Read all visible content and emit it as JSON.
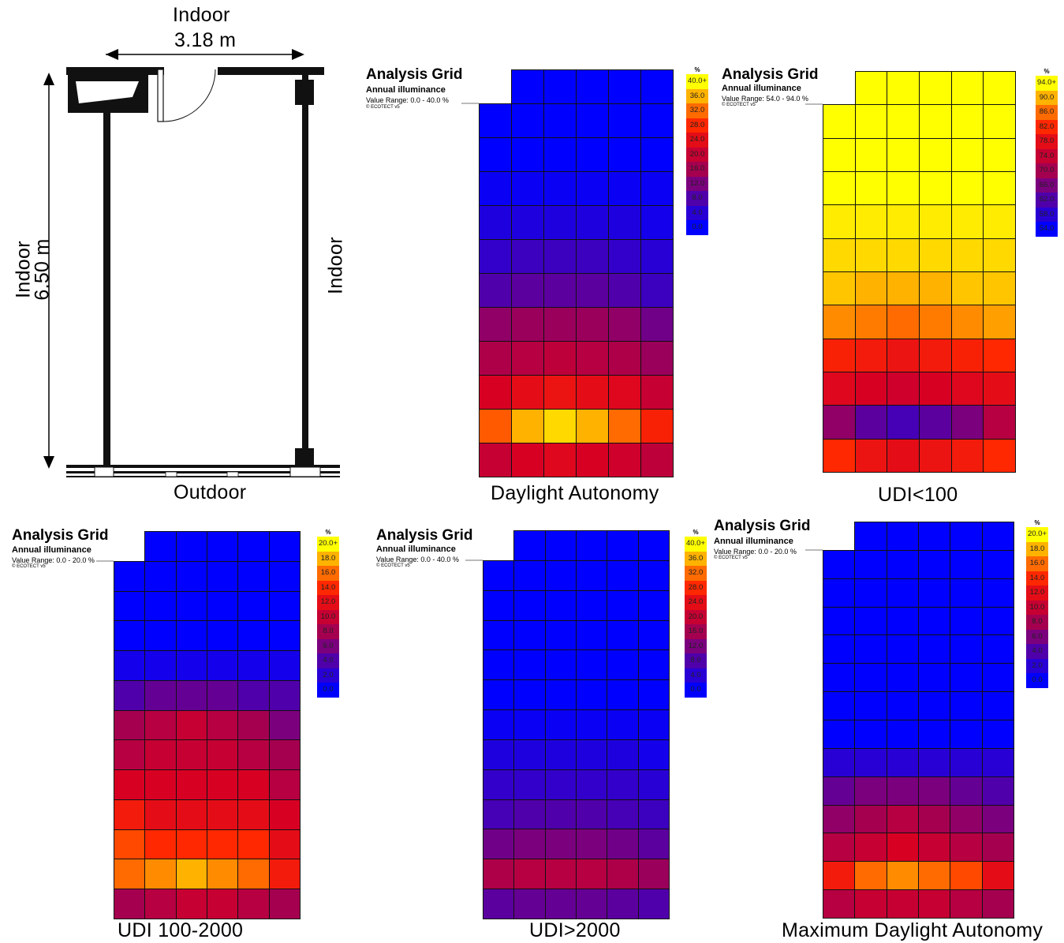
{
  "plan": {
    "top_label": "Indoor",
    "width_label": "3.18 m",
    "left_label_1": "Indoor",
    "left_label_2": "6.50 m",
    "right_label": "Indoor",
    "bottom_label": "Outdoor"
  },
  "panels": [
    {
      "id": "daylight-autonomy",
      "title": "Analysis Grid",
      "subtitle": "Annual illuminance",
      "range": "Value Range: 0.0 - 40.0 %",
      "copyright": "© ECOTECT v5",
      "caption": "Daylight Autonomy",
      "legend_unit": "%",
      "legend_labels": [
        "40.0+",
        "36.0",
        "32.0",
        "28.0",
        "24.0",
        "20.0",
        "16.0",
        "12.0",
        "8.0",
        "4.0",
        "0.0"
      ],
      "max": 40,
      "values": [
        [
          null,
          0,
          0,
          0,
          0,
          0
        ],
        [
          0,
          0,
          0,
          0,
          0,
          0
        ],
        [
          0,
          0,
          0,
          0,
          0,
          0
        ],
        [
          1,
          1,
          1,
          1,
          1,
          1
        ],
        [
          3,
          3,
          3,
          3,
          3,
          2
        ],
        [
          5,
          6,
          6,
          6,
          5,
          4
        ],
        [
          8,
          9,
          9,
          9,
          8,
          6
        ],
        [
          14,
          15,
          15,
          15,
          14,
          11
        ],
        [
          17,
          18,
          19,
          18,
          17,
          15
        ],
        [
          22,
          24,
          25,
          24,
          23,
          20
        ],
        [
          31,
          36,
          38,
          36,
          32,
          27
        ],
        [
          20,
          22,
          23,
          22,
          21,
          19
        ]
      ]
    },
    {
      "id": "udi-less-100",
      "title": "Analysis Grid",
      "subtitle": "Annual illuminance",
      "range": "Value Range: 54.0 - 94.0 %",
      "copyright": "© ECOTECT v5",
      "caption": "UDI<100",
      "legend_unit": "%",
      "legend_labels": [
        "94.0+",
        "90.0",
        "86.0",
        "82.0",
        "78.0",
        "74.0",
        "70.0",
        "66.0",
        "62.0",
        "58.0",
        "54.0"
      ],
      "min": 54,
      "max": 94,
      "values": [
        [
          null,
          94,
          94,
          94,
          94,
          94
        ],
        [
          94,
          94,
          94,
          94,
          94,
          94
        ],
        [
          94,
          94,
          94,
          94,
          94,
          94
        ],
        [
          94,
          94,
          94,
          94,
          94,
          94
        ],
        [
          93,
          93,
          93,
          93,
          93,
          93
        ],
        [
          92,
          92,
          92,
          92,
          92,
          92
        ],
        [
          91,
          90,
          90,
          90,
          91,
          91
        ],
        [
          88,
          87,
          86,
          87,
          88,
          89
        ],
        [
          81,
          80,
          79,
          80,
          81,
          82
        ],
        [
          77,
          76,
          75,
          76,
          77,
          78
        ],
        [
          68,
          63,
          61,
          63,
          66,
          72
        ],
        [
          82,
          79,
          78,
          79,
          80,
          82
        ]
      ]
    },
    {
      "id": "udi-100-2000",
      "title": "Analysis Grid",
      "subtitle": "Annual illuminance",
      "range": "Value Range: 0.0 - 20.0 %",
      "copyright": "© ECOTECT v5",
      "caption": "UDI 100-2000",
      "legend_unit": "%",
      "legend_labels": [
        "20.0+",
        "18.0",
        "16.0",
        "14.0",
        "12.0",
        "10.0",
        "8.0",
        "6.0",
        "4.0",
        "2.0",
        "0.0"
      ],
      "max": 20,
      "values": [
        [
          null,
          0,
          0,
          0,
          0,
          0
        ],
        [
          0,
          0,
          0,
          0,
          0,
          0
        ],
        [
          0,
          0,
          0,
          0,
          0,
          0
        ],
        [
          0,
          0,
          0,
          0,
          0,
          0
        ],
        [
          1,
          1,
          1,
          1,
          1,
          1
        ],
        [
          4,
          5,
          5,
          5,
          4,
          4
        ],
        [
          8,
          9,
          10,
          9,
          8,
          6
        ],
        [
          9,
          10,
          10,
          10,
          9,
          8
        ],
        [
          11,
          11,
          11,
          11,
          11,
          9
        ],
        [
          13,
          12,
          12,
          12,
          12,
          11
        ],
        [
          15,
          14,
          14,
          14,
          14,
          12
        ],
        [
          16,
          17,
          18,
          17,
          16,
          13
        ],
        [
          8,
          9,
          10,
          10,
          9,
          8
        ]
      ]
    },
    {
      "id": "udi-greater-2000",
      "title": "Analysis Grid",
      "subtitle": "Annual illuminance",
      "range": "Value Range: 0.0 - 40.0 %",
      "copyright": "© ECOTECT v5",
      "caption": "UDI>2000",
      "legend_unit": "%",
      "legend_labels": [
        "40.0+",
        "36.0",
        "32.0",
        "28.0",
        "24.0",
        "20.0",
        "16.0",
        "12.0",
        "8.0",
        "4.0",
        "0.0"
      ],
      "max": 40,
      "values": [
        [
          null,
          0,
          0,
          0,
          0,
          0
        ],
        [
          0,
          0,
          0,
          0,
          0,
          0
        ],
        [
          0,
          0,
          0,
          0,
          0,
          0
        ],
        [
          0,
          0,
          0,
          0,
          0,
          0
        ],
        [
          0,
          0,
          0,
          0,
          0,
          0
        ],
        [
          0,
          0,
          0,
          0,
          0,
          0
        ],
        [
          1,
          1,
          1,
          1,
          1,
          1
        ],
        [
          3,
          3,
          3,
          3,
          3,
          2
        ],
        [
          5,
          5,
          5,
          5,
          5,
          4
        ],
        [
          7,
          8,
          8,
          8,
          7,
          6
        ],
        [
          11,
          12,
          12,
          12,
          11,
          9
        ],
        [
          17,
          18,
          18,
          18,
          17,
          15
        ],
        [
          9,
          10,
          10,
          10,
          9,
          8
        ]
      ]
    },
    {
      "id": "max-daylight-autonomy",
      "title": "Analysis Grid",
      "subtitle": "Annual illuminance",
      "range": "Value Range: 0.0 - 20.0 %",
      "copyright": "© ECOTECT v5",
      "caption": "Maximum Daylight Autonomy",
      "legend_unit": "%",
      "legend_labels": [
        "20.0+",
        "18.0",
        "16.0",
        "14.0",
        "12.0",
        "10.0",
        "8.0",
        "6.0",
        "4.0",
        "2.0",
        "0.0"
      ],
      "max": 20,
      "values": [
        [
          null,
          0,
          0,
          0,
          0,
          0
        ],
        [
          0,
          0,
          0,
          0,
          0,
          0
        ],
        [
          0,
          0,
          0,
          0,
          0,
          0
        ],
        [
          0,
          0,
          0,
          0,
          0,
          0
        ],
        [
          0,
          0,
          0,
          0,
          0,
          0
        ],
        [
          0,
          0,
          0,
          0,
          0,
          0
        ],
        [
          0,
          0,
          0,
          0,
          0,
          0
        ],
        [
          0,
          0,
          0,
          0,
          0,
          0
        ],
        [
          2,
          2,
          2,
          2,
          2,
          2
        ],
        [
          5,
          6,
          6,
          6,
          5,
          4
        ],
        [
          7,
          8,
          9,
          8,
          7,
          6
        ],
        [
          9,
          10,
          11,
          10,
          9,
          8
        ],
        [
          13,
          16,
          17,
          16,
          15,
          12
        ],
        [
          9,
          10,
          10,
          10,
          9,
          8
        ]
      ]
    }
  ]
}
